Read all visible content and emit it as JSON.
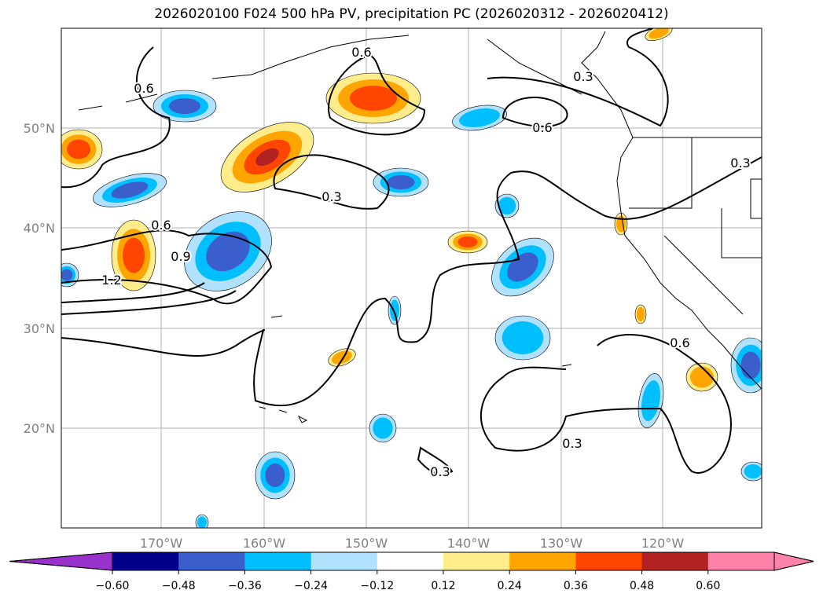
{
  "title": "2026020100 F024 500 hPa PV, precipitation PC (2026020312 - 2026020412)",
  "map": {
    "lon_labels": [
      "170°W",
      "160°W",
      "150°W",
      "140°W",
      "130°W",
      "120°W"
    ],
    "lat_labels": [
      "50°N",
      "40°N",
      "30°N",
      "20°N"
    ],
    "contour_labels": [
      "0.6",
      "0.6",
      "0.3",
      "0.6",
      "0.3",
      "0.3",
      "0.6",
      "0.9",
      "1.2",
      "0.6",
      "0.3",
      "0.3"
    ]
  },
  "colorbar": {
    "ticks": [
      "−0.60",
      "−0.48",
      "−0.36",
      "−0.24",
      "−0.12",
      "0.12",
      "0.24",
      "0.36",
      "0.48",
      "0.60"
    ],
    "colors": [
      "#9932CC",
      "#00008B",
      "#3A5FCD",
      "#00BFFF",
      "#B0E2FF",
      "#FFFFFF",
      "#FFEC8B",
      "#FFA500",
      "#FF4500",
      "#B22222",
      "#FF82AB"
    ]
  }
}
